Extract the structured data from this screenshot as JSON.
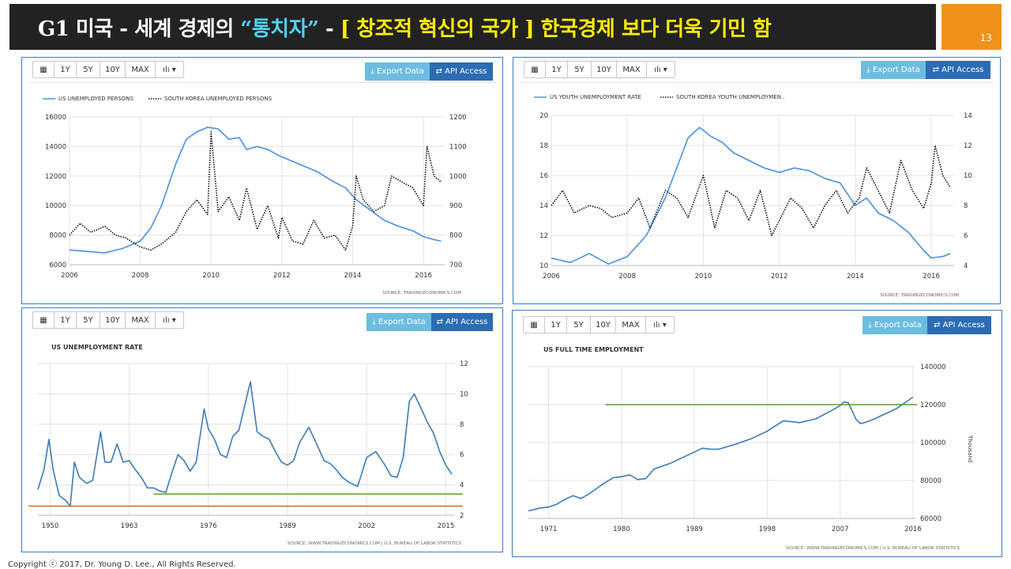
{
  "slide": {
    "title_part1": "G1 미국 - 세계 경제의 ",
    "title_quote": "“통치자”",
    "title_part2": " - ",
    "title_part3": "[ 창조적 혁신의 국가 ] 한국경제 보다 더욱 기민 함",
    "page_number": "13",
    "footer": "Copyright ⓒ 2017, Dr. Young D. Lee., All Rights Reserved.",
    "colors": {
      "title_bg": "#222222",
      "page_badge": "#f0921a",
      "cyan": "#4fd3f0",
      "yellow": "#ffee00"
    }
  },
  "toolbar": {
    "calendar_icon": "calendar-icon",
    "ranges": [
      "1Y",
      "5Y",
      "10Y",
      "MAX"
    ],
    "chart_type_icon": "bar-chart-icon",
    "export_label": "Export Data",
    "api_label": "API Access"
  },
  "charts": [
    {
      "id": "us-korea-unemployed",
      "legend": [
        "US UNEMPLOYED PERSONS",
        "SOUTH KOREA UNEMPLOYED PERSONS"
      ],
      "source": "SOURCE: TRADINGECONOMICS.COM",
      "chart_data": {
        "type": "line",
        "x_ticks": [
          "2006",
          "2008",
          "2010",
          "2012",
          "2014",
          "2016"
        ],
        "xlim": [
          2006,
          2016.6
        ],
        "y_left_ticks": [
          "6000",
          "8000",
          "10000",
          "12000",
          "14000",
          "16000"
        ],
        "ylim_left": [
          6000,
          16000
        ],
        "y_right_ticks": [
          "700",
          "800",
          "900",
          "1000",
          "1100",
          "1200"
        ],
        "ylim_right": [
          700,
          1200
        ],
        "series": [
          {
            "name": "US UNEMPLOYED PERSONS",
            "axis": "left",
            "color": "#4a90e2",
            "x": [
              2006,
              2006.5,
              2007,
              2007.5,
              2008,
              2008.3,
              2008.6,
              2009,
              2009.3,
              2009.6,
              2009.9,
              2010.2,
              2010.5,
              2010.8,
              2011,
              2011.3,
              2011.6,
              2011.9,
              2012.3,
              2012.7,
              2013,
              2013.4,
              2013.8,
              2014.1,
              2014.5,
              2014.9,
              2015.3,
              2015.7,
              2016,
              2016.3,
              2016.5
            ],
            "values": [
              7000,
              6900,
              6800,
              7100,
              7600,
              8500,
              10000,
              12800,
              14500,
              15000,
              15300,
              15200,
              14500,
              14600,
              13800,
              14000,
              13800,
              13400,
              13000,
              12600,
              12300,
              11700,
              11200,
              10400,
              9700,
              9000,
              8600,
              8300,
              7900,
              7700,
              7600
            ]
          },
          {
            "name": "SOUTH KOREA UNEMPLOYED PERSONS",
            "axis": "right",
            "color": "#111111",
            "x": [
              2006,
              2006.3,
              2006.6,
              2007,
              2007.3,
              2007.6,
              2008,
              2008.3,
              2008.6,
              2009,
              2009.3,
              2009.6,
              2009.9,
              2010,
              2010.2,
              2010.5,
              2010.8,
              2011,
              2011.3,
              2011.6,
              2011.9,
              2012,
              2012.3,
              2012.6,
              2012.9,
              2013.2,
              2013.5,
              2013.8,
              2014,
              2014.1,
              2014.3,
              2014.6,
              2014.9,
              2015.1,
              2015.4,
              2015.7,
              2016,
              2016.1,
              2016.3,
              2016.5
            ],
            "values": [
              800,
              840,
              810,
              830,
              800,
              790,
              760,
              750,
              770,
              810,
              880,
              920,
              870,
              1150,
              880,
              930,
              850,
              960,
              820,
              900,
              790,
              860,
              780,
              770,
              850,
              790,
              800,
              750,
              830,
              1000,
              920,
              880,
              900,
              1000,
              980,
              960,
              900,
              1100,
              1000,
              980
            ]
          }
        ]
      }
    },
    {
      "id": "us-korea-youth",
      "legend": [
        "US YOUTH UNEMPLOYMENT RATE",
        "SOUTH KOREA YOUTH UNEMPLOYMEN.."
      ],
      "source": "SOURCE: TRADINGECONOMICS.COM",
      "chart_data": {
        "type": "line",
        "x_ticks": [
          "2006",
          "2008",
          "2010",
          "2012",
          "2014",
          "2016"
        ],
        "xlim": [
          2006,
          2016.6
        ],
        "y_left_ticks": [
          "10",
          "12",
          "14",
          "16",
          "18",
          "20"
        ],
        "ylim_left": [
          10,
          20
        ],
        "y_right_ticks": [
          "4",
          "6",
          "8",
          "10",
          "12",
          "14"
        ],
        "ylim_right": [
          4,
          14
        ],
        "series": [
          {
            "name": "US YOUTH UNEMPLOYMENT RATE",
            "axis": "left",
            "color": "#4a90e2",
            "x": [
              2006,
              2006.5,
              2007,
              2007.5,
              2008,
              2008.5,
              2009,
              2009.3,
              2009.6,
              2009.9,
              2010.2,
              2010.5,
              2010.8,
              2011.2,
              2011.6,
              2012,
              2012.4,
              2012.8,
              2013.2,
              2013.6,
              2014,
              2014.3,
              2014.6,
              2015,
              2015.4,
              2015.8,
              2016,
              2016.3,
              2016.5
            ],
            "values": [
              10.5,
              10.2,
              10.8,
              10.1,
              10.6,
              12,
              14.5,
              16.5,
              18.5,
              19.2,
              18.6,
              18.2,
              17.5,
              17,
              16.5,
              16.2,
              16.5,
              16.3,
              15.8,
              15.5,
              14,
              14.5,
              13.5,
              13,
              12.2,
              11,
              10.5,
              10.6,
              10.8
            ]
          },
          {
            "name": "SOUTH KOREA YOUTH UNEMPLOYMENT RATE",
            "axis": "right",
            "color": "#111111",
            "x": [
              2006,
              2006.3,
              2006.6,
              2007,
              2007.3,
              2007.6,
              2008,
              2008.3,
              2008.6,
              2009,
              2009.3,
              2009.6,
              2010,
              2010.3,
              2010.6,
              2010.9,
              2011.2,
              2011.5,
              2011.8,
              2012,
              2012.3,
              2012.6,
              2012.9,
              2013.2,
              2013.5,
              2013.8,
              2014.1,
              2014.3,
              2014.6,
              2014.9,
              2015.2,
              2015.5,
              2015.8,
              2016,
              2016.1,
              2016.3,
              2016.5
            ],
            "values": [
              8,
              9,
              7.5,
              8,
              7.8,
              7.2,
              7.5,
              8.5,
              6.5,
              9,
              8.5,
              7.2,
              10,
              6.5,
              9,
              8.5,
              7,
              9,
              6,
              7,
              8.5,
              7.8,
              6.5,
              8,
              9,
              7.5,
              8.5,
              10.5,
              9,
              7.5,
              11,
              9,
              7.8,
              9.5,
              12,
              10,
              9.2
            ]
          }
        ]
      }
    },
    {
      "id": "us-unemployment-rate",
      "title": "US UNEMPLOYMENT RATE",
      "source": "SOURCE: WWW.TRADINGECONOMICS.COM | U.S. BUREAU OF LABOR STATISTICS",
      "chart_data": {
        "type": "line",
        "x_ticks": [
          "1950",
          "1963",
          "1976",
          "1989",
          "2002",
          "2015"
        ],
        "xlim": [
          1948,
          2016.5
        ],
        "y_ticks": [
          "2",
          "4",
          "6",
          "8",
          "10",
          "12"
        ],
        "ylim": [
          2,
          12
        ],
        "reference_lines": [
          {
            "value": 3.4,
            "color": "#5aa02c",
            "from_year": 1967
          },
          {
            "value": 2.6,
            "color": "#e07020",
            "from_year": 1946
          }
        ],
        "series": [
          {
            "name": "US UNEMPLOYMENT RATE",
            "color": "#3d7bb8",
            "x": [
              1948,
              1949,
              1949.8,
              1950.5,
              1951.5,
              1952.5,
              1953.3,
              1954,
              1954.8,
              1956,
              1957,
              1958.3,
              1959,
              1960,
              1961,
              1962,
              1963,
              1964,
              1965,
              1966,
              1967,
              1968,
              1969,
              1970,
              1971,
              1972,
              1973,
              1974,
              1975.3,
              1976,
              1977,
              1978,
              1979,
              1980,
              1981,
              1982.9,
              1984,
              1985,
              1986,
              1987,
              1988,
              1989,
              1990,
              1991,
              1992.5,
              1994,
              1995,
              1996,
              1997,
              1998,
              1999,
              2000.5,
              2001,
              2002,
              2003.5,
              2005,
              2006,
              2007,
              2008,
              2009,
              2009.8,
              2011,
              2012,
              2013,
              2014,
              2015,
              2016
            ],
            "values": [
              3.7,
              5,
              7,
              5,
              3.3,
              3,
              2.6,
              5.5,
              4.5,
              4.1,
              4.3,
              7.5,
              5.5,
              5.5,
              6.7,
              5.5,
              5.6,
              5,
              4.5,
              3.8,
              3.8,
              3.6,
              3.5,
              4.8,
              6,
              5.6,
              4.9,
              5.5,
              9,
              7.7,
              7,
              6,
              5.8,
              7.2,
              7.6,
              10.8,
              7.5,
              7.2,
              7,
              6.2,
              5.5,
              5.3,
              5.6,
              6.8,
              7.8,
              6.5,
              5.6,
              5.4,
              5,
              4.5,
              4.2,
              3.9,
              4.5,
              5.8,
              6.2,
              5.3,
              4.6,
              4.5,
              5.8,
              9.5,
              10,
              9,
              8.1,
              7.4,
              6.2,
              5.3,
              4.7
            ]
          }
        ]
      }
    },
    {
      "id": "us-full-time-employment",
      "title": "US FULL TIME EMPLOYMENT",
      "source": "SOURCE: WWW.TRADINGECONOMICS.COM | U.S. BUREAU OF LABOR STATISTICS",
      "right_axis_label": "Thousand",
      "chart_data": {
        "type": "line",
        "x_ticks": [
          "1971",
          "1980",
          "1989",
          "1998",
          "2007",
          "2016"
        ],
        "xlim": [
          1968.5,
          2016.3
        ],
        "y_ticks": [
          "60000",
          "80000",
          "100000",
          "120000",
          "140000"
        ],
        "ylim": [
          60000,
          140000
        ],
        "reference_lines": [
          {
            "value": 120000,
            "color": "#5aa02c",
            "from_year": 1978
          }
        ],
        "series": [
          {
            "name": "US FULL TIME EMPLOYMENT",
            "color": "#3d7bb8",
            "x": [
              1968.5,
              1970,
              1971,
              1972,
              1973,
              1974,
              1975,
              1976,
              1977,
              1978,
              1979,
              1980,
              1981,
              1982,
              1983,
              1984,
              1986,
              1988,
              1990,
              1991,
              1992,
              1994,
              1996,
              1998,
              2000,
              2001,
              2002,
              2004,
              2006,
              2007,
              2007.5,
              2008,
              2009,
              2009.5,
              2010,
              2011,
              2012,
              2013,
              2014,
              2015,
              2016
            ],
            "values": [
              64000,
              65500,
              66000,
              67500,
              70000,
              72000,
              70500,
              73000,
              76000,
              79000,
              81500,
              82000,
              83000,
              80500,
              81000,
              86000,
              89000,
              93000,
              97000,
              96500,
              96500,
              99000,
              102000,
              106000,
              111500,
              111000,
              110500,
              112500,
              117000,
              119500,
              121500,
              121000,
              112000,
              110000,
              110500,
              112000,
              114000,
              116000,
              118000,
              121000,
              124000
            ]
          }
        ]
      }
    }
  ]
}
